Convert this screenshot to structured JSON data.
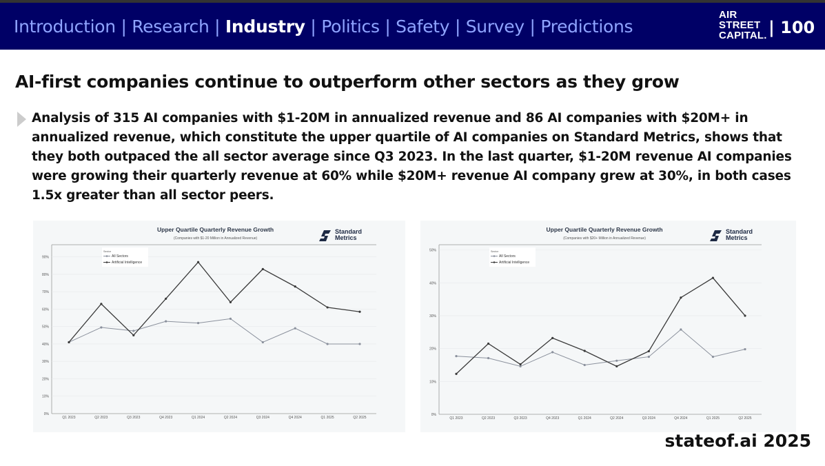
{
  "header": {
    "nav": [
      "Introduction",
      "Research",
      "Industry",
      "Politics",
      "Safety",
      "Survey",
      "Predictions"
    ],
    "active_index": 2,
    "separator": " | ",
    "logo": [
      "AIR",
      "STREET",
      "CAPITAL."
    ],
    "page_number": "| 100"
  },
  "title": "AI-first companies continue to outperform other sectors as they grow",
  "body": "Analysis of 315 AI companies with $1-20M in annualized revenue and 86 AI companies with $20M+ in annualized revenue, which constitute the upper quartile of AI companies on Standard Metrics, shows that they both outpaced the all sector average since Q3 2023. In the last quarter, $1-20M revenue AI companies were growing their quarterly revenue at 60% while $20M+ revenue AI company grew at 30%, in both cases 1.5x greater than all sector peers.",
  "footer": "stateof.ai 2025",
  "colors": {
    "navy": "#000066",
    "ai": "#3a3a3a",
    "all": "#8a909c"
  },
  "chart_data": [
    {
      "type": "line",
      "title": "Upper Quartile Quarterly Revenue Growth",
      "subtitle": "(Companies with $1-20 Million in Annualized Revenue)",
      "brand": [
        "Standard",
        "Metrics"
      ],
      "legend_title": "Sector",
      "legend_placement": "top-left",
      "categories": [
        "Q1 2023",
        "Q2 2023",
        "Q3 2023",
        "Q4 2023",
        "Q1 2024",
        "Q2 2024",
        "Q3 2024",
        "Q4 2024",
        "Q1 2025",
        "Q2 2025"
      ],
      "yticks": [
        "0%",
        "10%",
        "20%",
        "30%",
        "40%",
        "50%",
        "60%",
        "70%",
        "80%",
        "90%"
      ],
      "ylim": [
        0,
        97
      ],
      "series": [
        {
          "name": "All Sectors",
          "values": [
            41,
            49.5,
            47.5,
            53,
            52,
            54.5,
            41,
            49,
            40,
            40
          ]
        },
        {
          "name": "Artificial Intelligence",
          "values": [
            41,
            63,
            45,
            66,
            87,
            64,
            83,
            73,
            61,
            58.5
          ]
        }
      ]
    },
    {
      "type": "line",
      "title": "Upper Quartile Quarterly Revenue Growth",
      "subtitle": "(Companies with $20+ Million in Annualized Revenue)",
      "brand": [
        "Standard",
        "Metrics"
      ],
      "legend_title": "Sector",
      "legend_placement": "top-left",
      "categories": [
        "Q1 2023",
        "Q2 2023",
        "Q3 2023",
        "Q4 2023",
        "Q1 2024",
        "Q2 2024",
        "Q3 2024",
        "Q4 2024",
        "Q1 2025",
        "Q2 2025"
      ],
      "yticks": [
        "0%",
        "10%",
        "20%",
        "30%",
        "40%",
        "50%"
      ],
      "ylim": [
        0,
        51.6
      ],
      "series": [
        {
          "name": "All Sectors",
          "values": [
            17.7,
            17.1,
            14.6,
            18.9,
            15,
            16.3,
            17.5,
            25.8,
            17.5,
            19.8
          ]
        },
        {
          "name": "Artificial Intelligence",
          "values": [
            12.3,
            21.5,
            15.2,
            23.2,
            19.3,
            14.6,
            19.2,
            35.5,
            41.5,
            30
          ]
        }
      ]
    }
  ]
}
